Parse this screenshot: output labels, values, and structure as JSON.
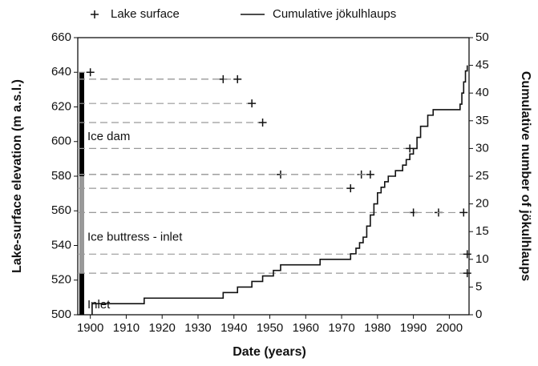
{
  "chart_data": {
    "type": "line",
    "xlabel": "Date (years)",
    "ylabel": "Lake-surface elevation (m a.s.l.)",
    "y2label": "Cumulative number of jökulhlaups",
    "xlim": [
      1896.5,
      2005.5
    ],
    "xticks": [
      1900,
      1910,
      1920,
      1930,
      1940,
      1950,
      1960,
      1970,
      1980,
      1990,
      2000
    ],
    "ylim": [
      500,
      660
    ],
    "yticks": [
      500,
      520,
      540,
      560,
      580,
      600,
      620,
      640,
      660
    ],
    "y2lim": [
      0,
      50
    ],
    "y2ticks": [
      0,
      5,
      10,
      15,
      20,
      25,
      30,
      35,
      40,
      45,
      50
    ],
    "legend": "top",
    "series": [
      {
        "name": "Lake surface",
        "color": "#111111",
        "marker": "+",
        "x": [
          1900,
          1937,
          1941,
          1945,
          1948,
          1953,
          1972.5,
          1975.5,
          1978,
          1989,
          1990,
          1997,
          2004,
          2005,
          2005
        ],
        "values": [
          640,
          636,
          636,
          622,
          611,
          581,
          573,
          581,
          581,
          596,
          559,
          559,
          559,
          535,
          524
        ]
      },
      {
        "name": "Cumulative jökulhlaups",
        "color": "#111111",
        "axis": "y2",
        "step": true,
        "x": [
          1900.5,
          1915,
          1937,
          1941,
          1945,
          1948,
          1951,
          1953,
          1964,
          1972.5,
          1974,
          1975,
          1976,
          1977,
          1978,
          1979,
          1980,
          1981,
          1982,
          1983,
          1985,
          1987,
          1988,
          1989,
          1990,
          1991,
          1992,
          1994,
          1995.5,
          2003,
          2003.5,
          2004,
          2004.5,
          2005
        ],
        "values": [
          2,
          3,
          4,
          5,
          6,
          7,
          8,
          9,
          10,
          11,
          12,
          13,
          14,
          16,
          18,
          20,
          22,
          23,
          24,
          25,
          26,
          27,
          28,
          29,
          30,
          32,
          34,
          36,
          37,
          38,
          40,
          42,
          44,
          45
        ]
      }
    ],
    "regions": [
      {
        "label": "Ice dam",
        "from": 580,
        "to": 640,
        "color": "#000000"
      },
      {
        "label": "Ice buttress - inlet",
        "from": 524,
        "to": 580,
        "color": "#999999"
      },
      {
        "label": "Inlet",
        "from": 500,
        "to": 524,
        "color": "#000000"
      }
    ]
  }
}
